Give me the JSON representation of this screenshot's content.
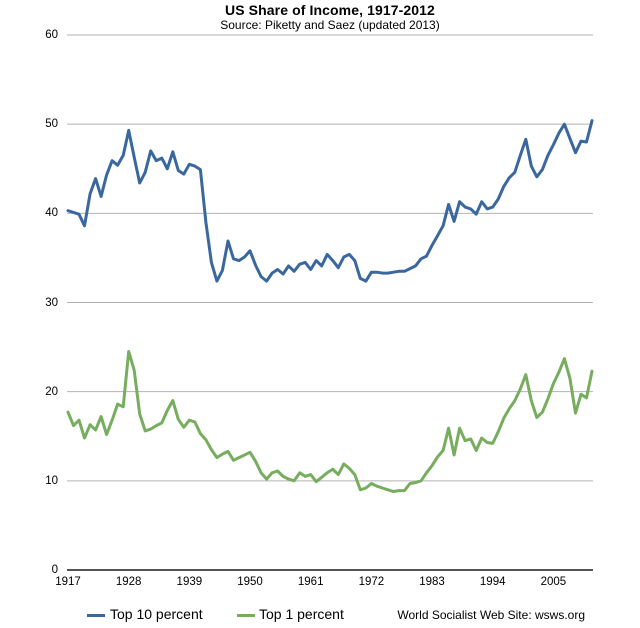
{
  "header": {
    "title": "US Share of Income, 1917-2012",
    "subtitle": "Source: Piketty and Saez (updated 2013)"
  },
  "colors": {
    "top10_line": "#3a689e",
    "top1_line": "#77ad5e",
    "gridline": "#b3b3b3",
    "axis_line": "#1a1a1a",
    "text": "#000000",
    "background": "#ffffff"
  },
  "footer": {
    "credit": "World Socialist Web Site: wsws.org"
  },
  "chart_data": {
    "type": "line",
    "title": "US Share of Income, 1917-2012",
    "subtitle": "Source: Piketty and Saez (updated 2013)",
    "xlabel": "",
    "ylabel": "",
    "xlim": [
      1917,
      2012
    ],
    "ylim": [
      0,
      60
    ],
    "y_ticks": [
      0,
      10,
      20,
      30,
      40,
      50,
      60
    ],
    "x_ticks": [
      1917,
      1928,
      1939,
      1950,
      1961,
      1972,
      1983,
      1994,
      2005
    ],
    "grid": "horizontal",
    "legend_position": "bottom",
    "x": [
      1917,
      1918,
      1919,
      1920,
      1921,
      1922,
      1923,
      1924,
      1925,
      1926,
      1927,
      1928,
      1929,
      1930,
      1931,
      1932,
      1933,
      1934,
      1935,
      1936,
      1937,
      1938,
      1939,
      1940,
      1941,
      1942,
      1943,
      1944,
      1945,
      1946,
      1947,
      1948,
      1949,
      1950,
      1951,
      1952,
      1953,
      1954,
      1955,
      1956,
      1957,
      1958,
      1959,
      1960,
      1961,
      1962,
      1963,
      1964,
      1965,
      1966,
      1967,
      1968,
      1969,
      1970,
      1971,
      1972,
      1973,
      1974,
      1975,
      1976,
      1977,
      1978,
      1979,
      1980,
      1981,
      1982,
      1983,
      1984,
      1985,
      1986,
      1987,
      1988,
      1989,
      1990,
      1991,
      1992,
      1993,
      1994,
      1995,
      1996,
      1997,
      1998,
      1999,
      2000,
      2001,
      2002,
      2003,
      2004,
      2005,
      2006,
      2007,
      2008,
      2009,
      2010,
      2011,
      2012
    ],
    "series": [
      {
        "name": "Top 10 percent",
        "color": "#3a689e",
        "values": [
          40.3,
          40.1,
          39.9,
          38.6,
          42.2,
          43.9,
          41.9,
          44.3,
          45.9,
          45.4,
          46.5,
          49.3,
          46.3,
          43.4,
          44.6,
          47.0,
          45.9,
          46.2,
          45.0,
          46.9,
          44.8,
          44.4,
          45.5,
          45.3,
          44.9,
          39.0,
          34.5,
          32.4,
          33.6,
          36.9,
          34.9,
          34.7,
          35.1,
          35.8,
          34.2,
          32.9,
          32.4,
          33.3,
          33.7,
          33.2,
          34.1,
          33.5,
          34.3,
          34.5,
          33.7,
          34.7,
          34.1,
          35.4,
          34.7,
          33.9,
          35.1,
          35.4,
          34.7,
          32.7,
          32.4,
          33.4,
          33.4,
          33.3,
          33.3,
          33.4,
          33.5,
          33.5,
          33.8,
          34.1,
          34.9,
          35.2,
          36.4,
          37.5,
          38.6,
          41.0,
          39.1,
          41.3,
          40.7,
          40.5,
          39.9,
          41.3,
          40.5,
          40.7,
          41.6,
          43.0,
          44.0,
          44.6,
          46.5,
          48.3,
          45.3,
          44.1,
          44.9,
          46.5,
          47.7,
          49.0,
          50.0,
          48.4,
          46.8,
          48.1,
          48.0,
          50.4
        ]
      },
      {
        "name": "Top 1 percent",
        "color": "#77ad5e",
        "values": [
          17.7,
          16.2,
          16.8,
          14.8,
          16.3,
          15.7,
          17.2,
          15.2,
          16.8,
          18.6,
          18.3,
          24.5,
          22.4,
          17.5,
          15.6,
          15.8,
          16.2,
          16.5,
          17.9,
          19.0,
          16.9,
          16.0,
          16.8,
          16.6,
          15.3,
          14.6,
          13.5,
          12.6,
          13.0,
          13.3,
          12.3,
          12.6,
          12.9,
          13.2,
          12.2,
          10.9,
          10.2,
          10.9,
          11.1,
          10.5,
          10.2,
          10.0,
          10.9,
          10.5,
          10.7,
          9.9,
          10.4,
          10.9,
          11.3,
          10.7,
          11.9,
          11.4,
          10.7,
          9.0,
          9.2,
          9.7,
          9.4,
          9.2,
          9.0,
          8.8,
          8.9,
          8.9,
          9.7,
          9.8,
          10.0,
          10.9,
          11.7,
          12.7,
          13.4,
          15.9,
          12.9,
          15.9,
          14.5,
          14.7,
          13.4,
          14.8,
          14.3,
          14.2,
          15.5,
          17.0,
          18.1,
          19.0,
          20.3,
          21.9,
          19.0,
          17.1,
          17.7,
          19.2,
          20.9,
          22.2,
          23.7,
          21.5,
          17.6,
          19.7,
          19.3,
          22.3
        ]
      }
    ],
    "credit": "World Socialist Web Site: wsws.org"
  }
}
